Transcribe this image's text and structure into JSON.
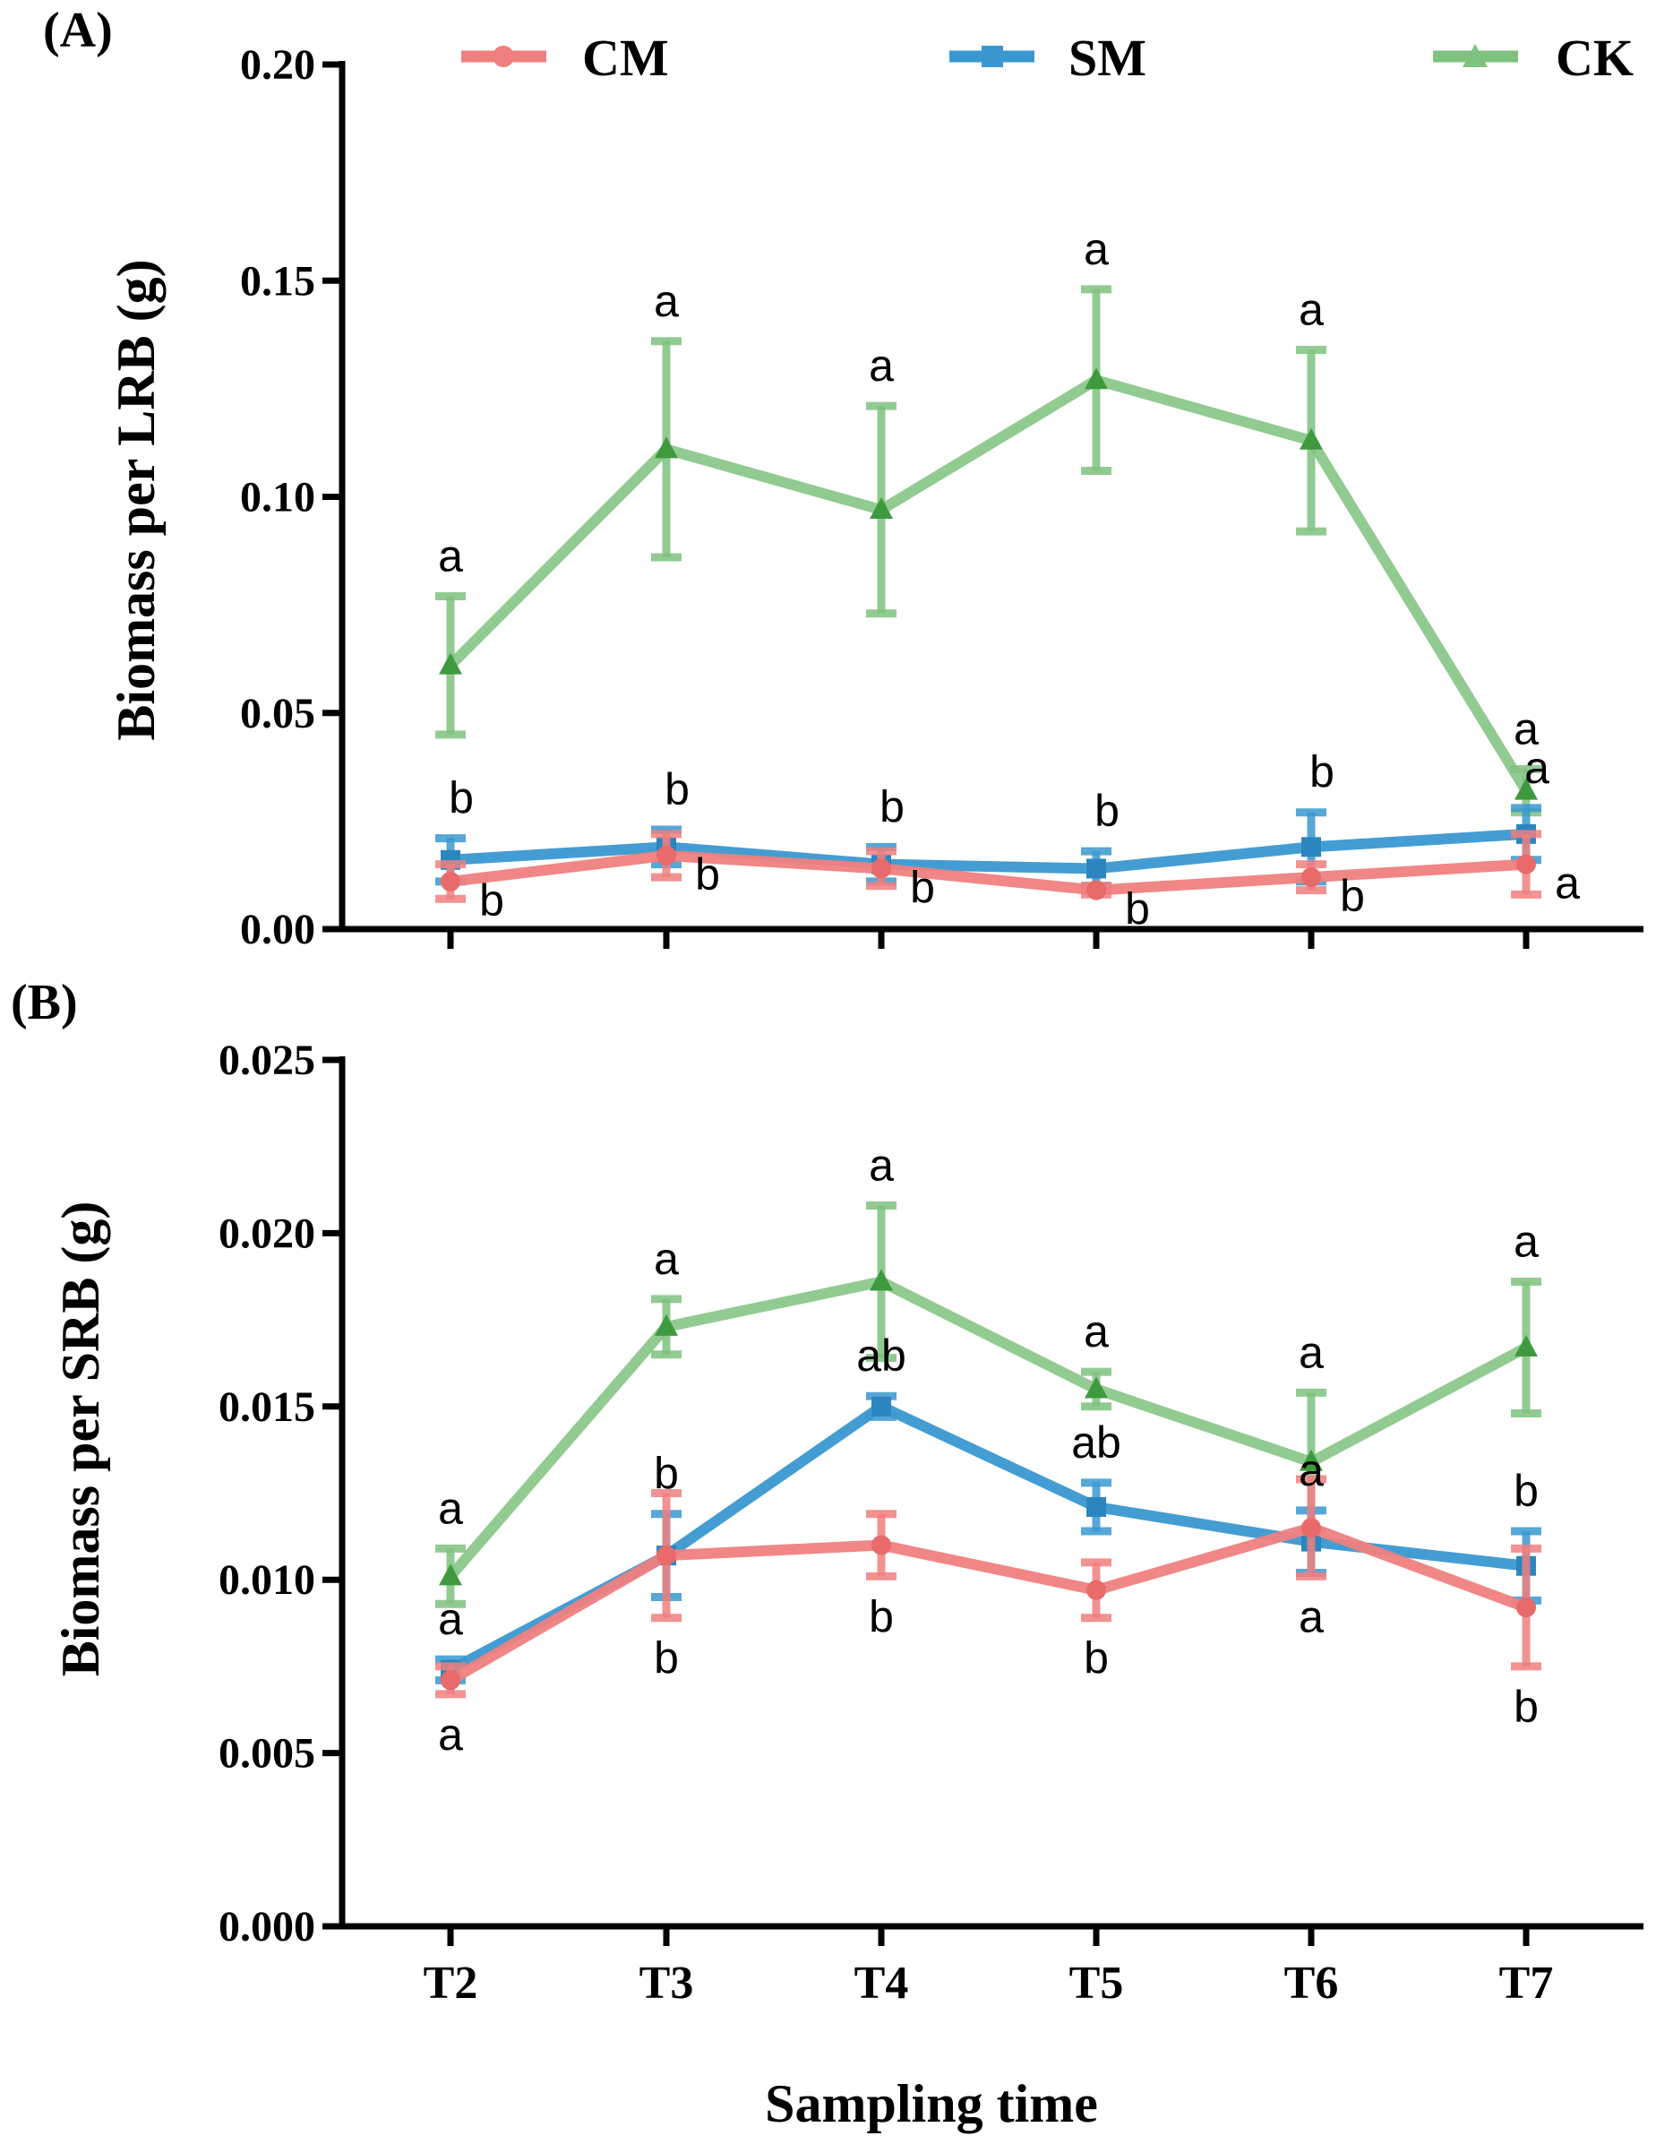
{
  "xlabel": "Sampling time",
  "legend": [
    {
      "name": "CM",
      "color": "#f07f7f",
      "marker": "circle"
    },
    {
      "name": "SM",
      "color": "#3a98d0",
      "marker": "square"
    },
    {
      "name": "CK",
      "color": "#7fc27f",
      "marker": "triangle"
    }
  ],
  "chart_data": [
    {
      "type": "line",
      "panel": "(A)",
      "title": "",
      "xlabel": "",
      "ylabel": "Biomass per LRB (g)",
      "categories": [
        "T2",
        "T3",
        "T4",
        "T5",
        "T6",
        "T7"
      ],
      "ylim": [
        0,
        0.2
      ],
      "yticks": [
        "0.00",
        "0.05",
        "0.10",
        "0.15",
        "0.20"
      ],
      "series": [
        {
          "name": "CM",
          "values": [
            0.011,
            0.017,
            0.014,
            0.009,
            0.012,
            0.015
          ],
          "errors": [
            0.004,
            0.005,
            0.004,
            0.001,
            0.003,
            0.007
          ],
          "letters": [
            "b",
            "b",
            "b",
            "b",
            "b",
            "a"
          ]
        },
        {
          "name": "SM",
          "values": [
            0.016,
            0.019,
            0.015,
            0.014,
            0.019,
            0.022
          ],
          "errors": [
            0.005,
            0.004,
            0.004,
            0.004,
            0.008,
            0.006
          ],
          "letters": [
            "b",
            "b",
            "b",
            "b",
            "b",
            "a"
          ]
        },
        {
          "name": "CK",
          "values": [
            0.061,
            0.111,
            0.097,
            0.127,
            0.113,
            0.032
          ],
          "errors": [
            0.016,
            0.025,
            0.024,
            0.021,
            0.021,
            0.005
          ],
          "letters": [
            "a",
            "a",
            "a",
            "a",
            "a",
            "a"
          ]
        }
      ]
    },
    {
      "type": "line",
      "panel": "(B)",
      "title": "",
      "xlabel": "Sampling time",
      "ylabel": "Biomass per SRB (g)",
      "categories": [
        "T2",
        "T3",
        "T4",
        "T5",
        "T6",
        "T7"
      ],
      "ylim": [
        0,
        0.025
      ],
      "yticks": [
        "0.000",
        "0.005",
        "0.010",
        "0.015",
        "0.020",
        "0.025"
      ],
      "series": [
        {
          "name": "CM",
          "values": [
            0.0071,
            0.0107,
            0.011,
            0.0097,
            0.0115,
            0.0092
          ],
          "errors": [
            0.0004,
            0.0018,
            0.0009,
            0.0008,
            0.0014,
            0.0017
          ],
          "letters": [
            "a",
            "b",
            "b",
            "b",
            "a",
            "b"
          ]
        },
        {
          "name": "SM",
          "values": [
            0.0074,
            0.0107,
            0.015,
            0.0121,
            0.0111,
            0.0104
          ],
          "errors": [
            0.0003,
            0.0012,
            0.0003,
            0.0007,
            0.0009,
            0.001
          ],
          "letters": [
            "a",
            "b",
            "ab",
            "ab",
            "a",
            "b"
          ]
        },
        {
          "name": "CK",
          "values": [
            0.0101,
            0.0173,
            0.0186,
            0.0155,
            0.0134,
            0.0167
          ],
          "errors": [
            0.0008,
            0.0008,
            0.0022,
            0.0005,
            0.002,
            0.0019
          ],
          "letters": [
            "a",
            "a",
            "a",
            "a",
            "a",
            "a"
          ]
        }
      ]
    }
  ]
}
